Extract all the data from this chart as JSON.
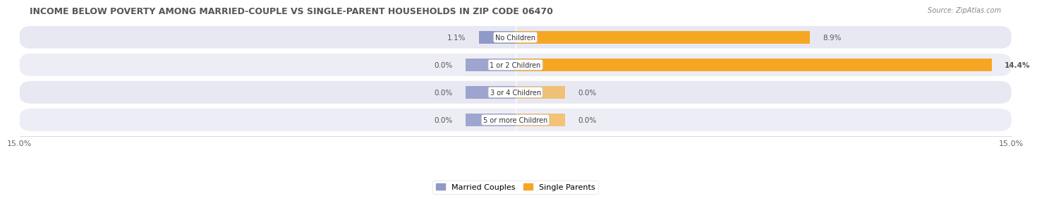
{
  "title": "INCOME BELOW POVERTY AMONG MARRIED-COUPLE VS SINGLE-PARENT HOUSEHOLDS IN ZIP CODE 06470",
  "source": "Source: ZipAtlas.com",
  "categories": [
    "No Children",
    "1 or 2 Children",
    "3 or 4 Children",
    "5 or more Children"
  ],
  "married_couples": [
    1.1,
    0.0,
    0.0,
    0.0
  ],
  "single_parents": [
    8.9,
    14.4,
    0.0,
    0.0
  ],
  "xlim": 15.0,
  "married_color": "#9099c8",
  "single_color": "#f5a623",
  "row_colors": [
    "#e8e8f2",
    "#ededf5"
  ],
  "title_fontsize": 9,
  "label_fontsize": 7.5,
  "tick_fontsize": 8,
  "legend_fontsize": 8,
  "source_fontsize": 7
}
